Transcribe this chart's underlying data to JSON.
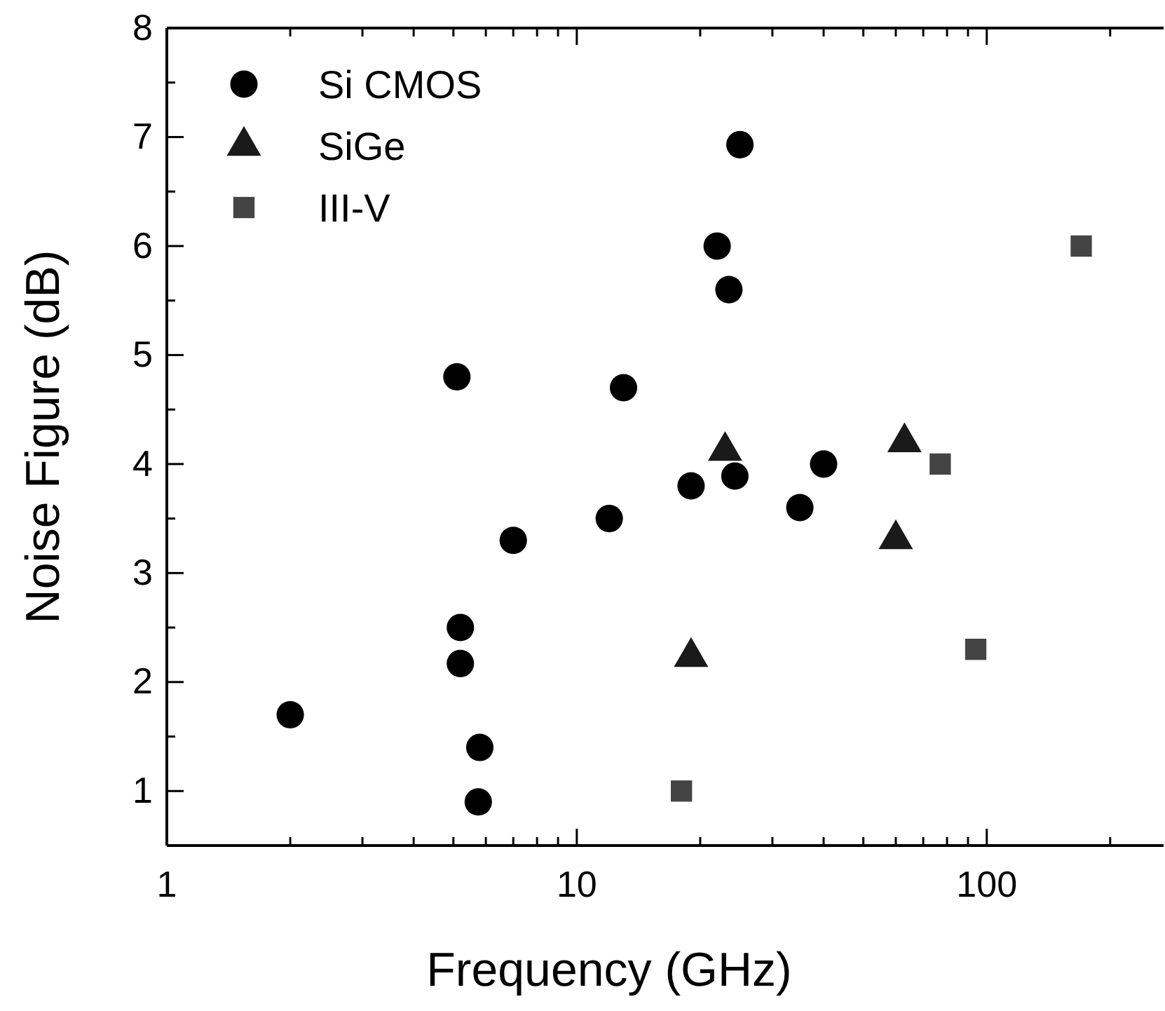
{
  "chart_data": {
    "type": "scatter",
    "xlabel": "Frequency (GHz)",
    "ylabel": "Noise Figure (dB)",
    "log": "x",
    "xlim": [
      1,
      270
    ],
    "ylim": [
      0.5,
      8
    ],
    "xticks": [
      1,
      {
        "value": 2,
        "label": null
      },
      {
        "value": 3,
        "label": null
      },
      {
        "value": 4,
        "label": null
      },
      {
        "value": 5,
        "label": null
      },
      {
        "value": 6,
        "label": null
      },
      {
        "value": 7,
        "label": null
      },
      {
        "value": 8,
        "label": null
      },
      {
        "value": 9,
        "label": null
      },
      10,
      {
        "value": 20,
        "label": null
      },
      {
        "value": 30,
        "label": null
      },
      {
        "value": 40,
        "label": null
      },
      {
        "value": 50,
        "label": null
      },
      {
        "value": 60,
        "label": null
      },
      {
        "value": 70,
        "label": null
      },
      {
        "value": 80,
        "label": null
      },
      {
        "value": 90,
        "label": null
      },
      100,
      {
        "value": 200,
        "label": null
      }
    ],
    "yticks": [
      1,
      {
        "value": 1.5,
        "label": null
      },
      2,
      {
        "value": 2.5,
        "label": null
      },
      3,
      {
        "value": 3.5,
        "label": null
      },
      4,
      {
        "value": 4.5,
        "label": null
      },
      5,
      {
        "value": 5.5,
        "label": null
      },
      6,
      {
        "value": 6.5,
        "label": null
      },
      7,
      {
        "value": 7.5,
        "label": null
      },
      8
    ],
    "legend": "top left",
    "grid": false,
    "series": [
      {
        "name": "Si CMOS",
        "color": "#000000",
        "marker": "circle",
        "x": [
          2,
          5.1,
          5.2,
          5.2,
          5.8,
          5.75,
          7,
          12,
          13,
          19,
          22,
          23.5,
          25,
          24.3,
          35,
          40
        ],
        "values": [
          1.7,
          4.8,
          2.5,
          2.17,
          1.4,
          0.9,
          3.3,
          3.5,
          4.7,
          3.8,
          6,
          5.6,
          6.93,
          3.89,
          3.6,
          4
        ]
      },
      {
        "name": "SiGe",
        "color": "#1a1a1a",
        "marker": "triangle",
        "x": [
          23,
          19,
          63,
          60
        ],
        "values": [
          4.12,
          2.23,
          4.2,
          3.31
        ]
      },
      {
        "name": "III-V",
        "color": "#444444",
        "marker": "square",
        "x": [
          18,
          77,
          94,
          170
        ],
        "values": [
          1,
          4,
          2.3,
          6
        ]
      }
    ]
  }
}
